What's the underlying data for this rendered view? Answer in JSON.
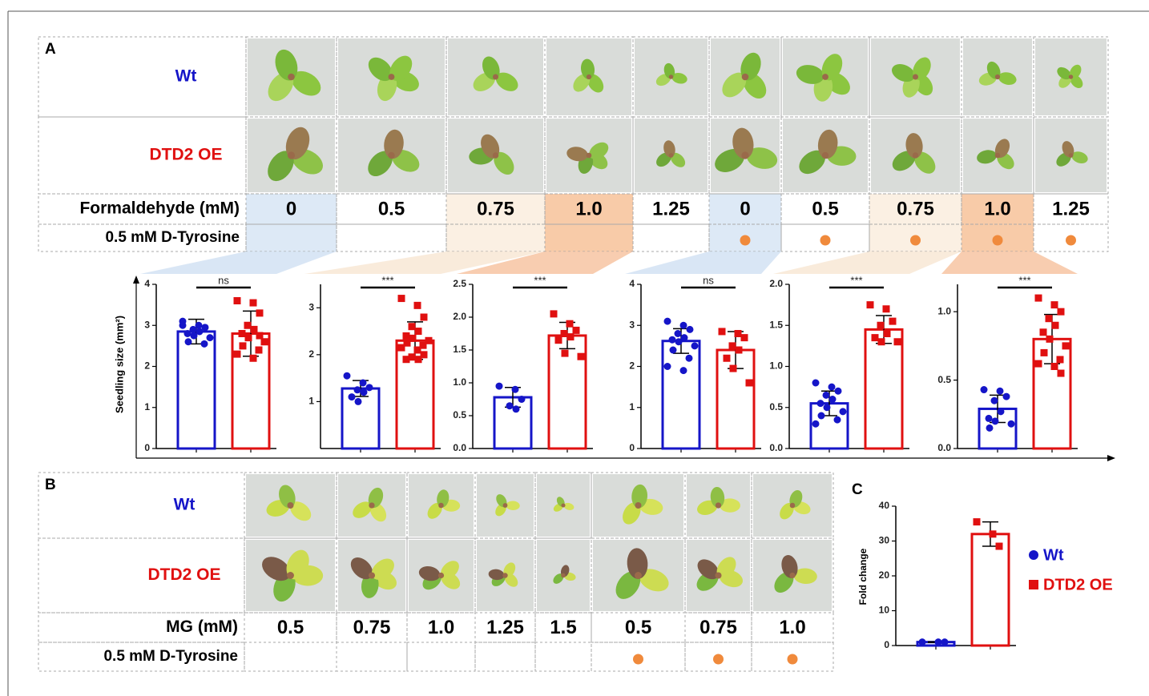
{
  "panel_a": {
    "label": "A",
    "rows": [
      "Wt",
      "DTD2 OE"
    ],
    "treatment": "Formaldehyde (mM)",
    "concentrations": [
      "0",
      "0.5",
      "0.75",
      "1.0",
      "1.25",
      "0",
      "0.5",
      "0.75",
      "1.0",
      "1.25"
    ],
    "supplement": "0.5 mM D-Tyrosine",
    "supplemented": [
      false,
      false,
      false,
      false,
      false,
      true,
      true,
      true,
      true,
      true
    ],
    "y_label": "Seedling size (mm²)",
    "charts": [
      {
        "type": "bar",
        "ylim": [
          0,
          4
        ],
        "yticks": [
          0,
          1,
          2,
          3,
          4
        ],
        "colors": [
          "#1515c8",
          "#e01010"
        ],
        "values": [
          2.85,
          2.8
        ],
        "errors": [
          0.3,
          0.55
        ],
        "points": [
          [
            3.1,
            3.0,
            2.95,
            2.9,
            2.85,
            2.8,
            2.75,
            2.7,
            2.6,
            2.55,
            3.0
          ],
          [
            3.6,
            3.55,
            3.3,
            3.0,
            2.9,
            2.8,
            2.7,
            2.6,
            2.5,
            2.4,
            2.3,
            2.2,
            2.75
          ]
        ],
        "significance": "ns"
      },
      {
        "type": "bar",
        "ylim": [
          0,
          3.5
        ],
        "yticks": [
          1,
          2,
          3
        ],
        "colors": [
          "#1515c8",
          "#e01010"
        ],
        "values": [
          1.28,
          2.3
        ],
        "errors": [
          0.17,
          0.4
        ],
        "points": [
          [
            1.55,
            1.4,
            1.3,
            1.25,
            1.2,
            1.1,
            1.0
          ],
          [
            3.2,
            3.05,
            2.8,
            2.6,
            2.5,
            2.4,
            2.35,
            2.3,
            2.25,
            2.2,
            2.15,
            2.1,
            2.0,
            1.95,
            1.9,
            1.9
          ]
        ],
        "significance": "***"
      },
      {
        "type": "bar",
        "ylim": [
          0,
          2.5
        ],
        "yticks": [
          {
            "value": 0,
            "label": "0.0"
          },
          0.5,
          {
            "value": 1,
            "label": "1.0"
          },
          1.5,
          {
            "value": 2,
            "label": "2.0"
          },
          2.5
        ],
        "colors": [
          "#1515c8",
          "#e01010"
        ],
        "values": [
          0.78,
          1.72
        ],
        "errors": [
          0.15,
          0.2
        ],
        "points": [
          [
            0.95,
            0.9,
            0.75,
            0.65,
            0.6
          ],
          [
            2.05,
            1.9,
            1.8,
            1.75,
            1.7,
            1.65,
            1.45,
            1.4
          ]
        ],
        "significance": "***"
      },
      {
        "type": "bar",
        "ylim": [
          0,
          4
        ],
        "yticks": [
          0,
          1,
          2,
          3,
          4
        ],
        "colors": [
          "#1515c8",
          "#e01010"
        ],
        "values": [
          2.62,
          2.4
        ],
        "errors": [
          0.3,
          0.45
        ],
        "points": [
          [
            3.1,
            3.0,
            2.9,
            2.8,
            2.7,
            2.65,
            2.6,
            2.5,
            2.4,
            2.2,
            2.0,
            1.9
          ],
          [
            2.85,
            2.8,
            2.7,
            2.5,
            2.4,
            2.2,
            1.95,
            1.6
          ]
        ],
        "significance": "ns"
      },
      {
        "type": "bar",
        "ylim": [
          0,
          2
        ],
        "yticks": [
          {
            "value": 0,
            "label": "0.0"
          },
          0.5,
          {
            "value": 1,
            "label": "1.0"
          },
          1.5,
          {
            "value": 2,
            "label": "2.0"
          }
        ],
        "colors": [
          "#1515c8",
          "#e01010"
        ],
        "values": [
          0.55,
          1.45
        ],
        "errors": [
          0.15,
          0.17
        ],
        "points": [
          [
            0.8,
            0.75,
            0.7,
            0.65,
            0.6,
            0.55,
            0.5,
            0.45,
            0.4,
            0.35,
            0.3
          ],
          [
            1.75,
            1.7,
            1.55,
            1.5,
            1.4,
            1.35,
            1.3,
            1.3
          ]
        ],
        "significance": "***"
      },
      {
        "type": "bar",
        "ylim": [
          0,
          1.2
        ],
        "yticks": [
          {
            "value": 0,
            "label": "0.0"
          },
          0.5,
          {
            "value": 1,
            "label": "1.0"
          }
        ],
        "colors": [
          "#1515c8",
          "#e01010"
        ],
        "values": [
          0.29,
          0.8
        ],
        "errors": [
          0.1,
          0.18
        ],
        "points": [
          [
            0.43,
            0.42,
            0.38,
            0.35,
            0.27,
            0.22,
            0.2,
            0.18,
            0.15
          ],
          [
            1.1,
            1.05,
            1.0,
            0.95,
            0.9,
            0.85,
            0.8,
            0.75,
            0.7,
            0.65,
            0.62,
            0.6,
            0.55
          ]
        ],
        "significance": "***"
      }
    ]
  },
  "panel_b": {
    "label": "B",
    "rows": [
      "Wt",
      "DTD2 OE"
    ],
    "treatment": "MG (mM)",
    "concentrations": [
      "0.5",
      "0.75",
      "1.0",
      "1.25",
      "1.5",
      "0.5",
      "0.75",
      "1.0"
    ],
    "supplement": "0.5 mM D-Tyrosine",
    "supplemented": [
      false,
      false,
      false,
      false,
      false,
      true,
      true,
      true
    ]
  },
  "panel_c": {
    "label": "C",
    "chart_data": {
      "type": "bar",
      "y_label": "Fold change",
      "ylim": [
        0,
        40
      ],
      "yticks": [
        0,
        10,
        20,
        30,
        40
      ],
      "names": [
        "Wt",
        "DTD2 OE"
      ],
      "colors": [
        "#1515c8",
        "#e01010"
      ],
      "values": [
        1,
        32
      ],
      "errors": [
        0.1,
        3.5
      ],
      "points": [
        [
          1,
          1,
          1
        ],
        [
          35.5,
          32,
          28.5
        ]
      ]
    }
  }
}
